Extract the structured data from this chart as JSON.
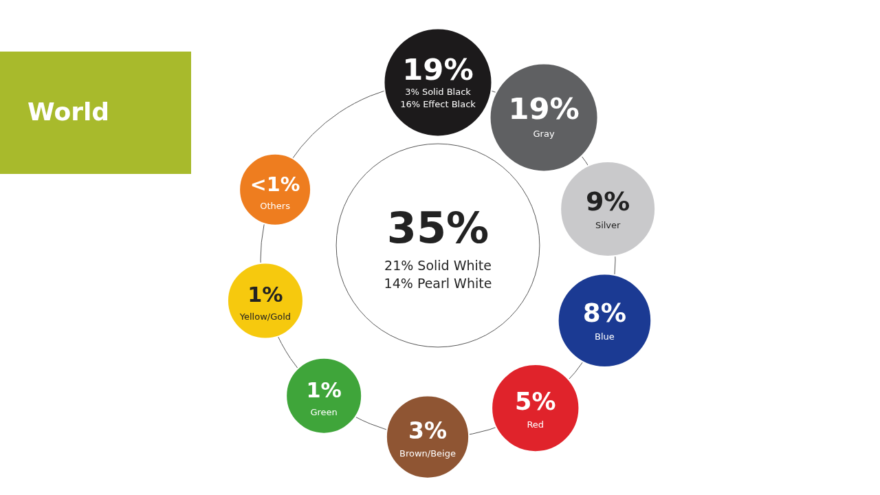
{
  "chart_data": {
    "type": "other",
    "title": "World",
    "categories": [
      "21% Solid White\n14% Pearl White",
      "3% Solid Black\n16% Effect Black",
      "Gray",
      "Silver",
      "Blue",
      "Red",
      "Brown/Beige",
      "Green",
      "Yellow/Gold",
      "Others"
    ],
    "values": [
      35,
      19,
      19,
      9,
      8,
      5,
      3,
      1,
      1,
      null
    ],
    "value_labels": [
      "35%",
      "19%",
      "19%",
      "9%",
      "8%",
      "5%",
      "3%",
      "1%",
      "1%",
      "<1%"
    ],
    "colors": [
      "#ffffff",
      "#1c1a1b",
      "#5f6062",
      "#c9c9cb",
      "#1b3a93",
      "#e0232b",
      "#8f5533",
      "#3fa53a",
      "#f6c90e",
      "#ee7d1f"
    ]
  }
}
